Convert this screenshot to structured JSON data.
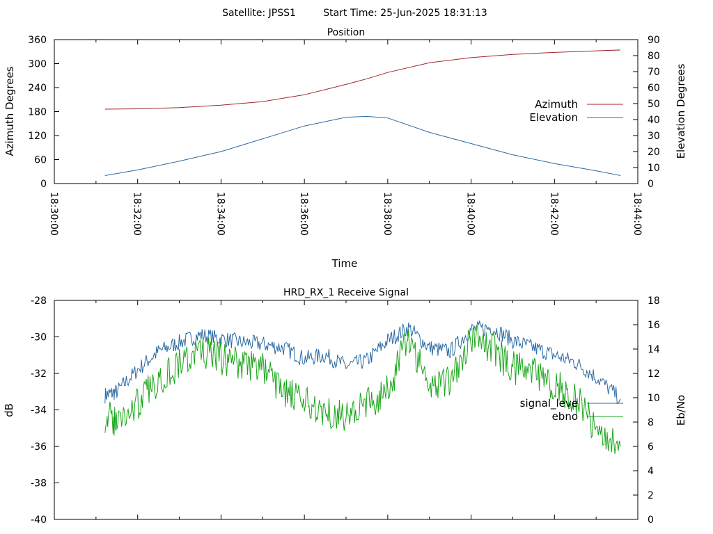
{
  "header": {
    "satellite": "Satellite: JPSS1",
    "start_time": "Start Time: 25-Jun-2025 18:31:13"
  },
  "chart_data": [
    {
      "type": "line",
      "title": "Position",
      "xlabel": "Time",
      "ylabel": "Azimuth Degrees",
      "y2label": "Elevation Degrees",
      "xlim": [
        "18:30:00",
        "18:44:00"
      ],
      "ylim": [
        0,
        360
      ],
      "y2lim": [
        0,
        90
      ],
      "x_ticks": [
        "18:30:00",
        "18:32:00",
        "18:34:00",
        "18:36:00",
        "18:38:00",
        "18:40:00",
        "18:42:00",
        "18:44:00"
      ],
      "y_ticks": [
        "0",
        "60",
        "120",
        "180",
        "240",
        "300",
        "360"
      ],
      "y2_ticks": [
        "0",
        "10",
        "20",
        "30",
        "40",
        "50",
        "60",
        "70",
        "80",
        "90"
      ],
      "legend_position": "right",
      "grid": false,
      "x": [
        "18:31:13",
        "18:32:00",
        "18:33:00",
        "18:34:00",
        "18:35:00",
        "18:36:00",
        "18:37:00",
        "18:37:30",
        "18:38:00",
        "18:39:00",
        "18:40:00",
        "18:41:00",
        "18:42:00",
        "18:43:00",
        "18:43:35"
      ],
      "series": [
        {
          "name": "Azimuth",
          "axis": "left",
          "color": "#a0262e",
          "values": [
            186,
            187,
            190,
            196,
            205,
            222,
            248,
            262,
            278,
            302,
            315,
            323,
            328,
            332,
            334
          ]
        },
        {
          "name": "Elevation",
          "axis": "right",
          "color": "#2b6aa3",
          "values": [
            5,
            8.5,
            14,
            20,
            28,
            36,
            41.5,
            42,
            41,
            32,
            25,
            18,
            12.5,
            8,
            5
          ]
        }
      ]
    },
    {
      "type": "line",
      "title": "HRD_RX_1 Receive Signal",
      "xlabel": "",
      "ylabel": "dB",
      "y2label": "Eb/No",
      "xlim": [
        "18:30:00",
        "18:44:00"
      ],
      "ylim": [
        -40,
        -28
      ],
      "y2lim": [
        0,
        18
      ],
      "y_ticks": [
        "-40",
        "-38",
        "-36",
        "-34",
        "-32",
        "-30",
        "-28"
      ],
      "y2_ticks": [
        "0",
        "2",
        "4",
        "6",
        "8",
        "10",
        "12",
        "14",
        "16",
        "18"
      ],
      "legend_position": "right",
      "grid": false,
      "x": [
        "18:31:13",
        "18:31:30",
        "18:32:00",
        "18:32:30",
        "18:33:00",
        "18:33:30",
        "18:34:00",
        "18:34:30",
        "18:35:00",
        "18:35:30",
        "18:36:00",
        "18:36:30",
        "18:37:00",
        "18:37:30",
        "18:38:00",
        "18:38:30",
        "18:39:00",
        "18:39:30",
        "18:40:00",
        "18:40:30",
        "18:41:00",
        "18:41:30",
        "18:42:00",
        "18:42:30",
        "18:43:00",
        "18:43:35"
      ],
      "series": [
        {
          "name": "signal_level",
          "label": "signal_leve",
          "axis": "left",
          "color": "#2b6aa3",
          "values": [
            -33.2,
            -33.0,
            -31.8,
            -30.8,
            -30.3,
            -29.9,
            -30.1,
            -30.3,
            -30.4,
            -30.6,
            -31.2,
            -31.0,
            -31.6,
            -31.3,
            -30.2,
            -29.5,
            -30.6,
            -30.8,
            -29.6,
            -29.5,
            -30.2,
            -30.6,
            -31.0,
            -31.4,
            -32.2,
            -33.4
          ]
        },
        {
          "name": "ebno",
          "label": "ebno",
          "axis": "right",
          "color": "#1aa51a",
          "values": [
            8.5,
            8.0,
            9.5,
            11.5,
            12.8,
            13.8,
            13.2,
            12.8,
            12.5,
            10.5,
            9.5,
            9.0,
            8.5,
            9.5,
            10.5,
            15.0,
            11.0,
            11.5,
            15.0,
            14.0,
            12.5,
            12.0,
            11.0,
            10.0,
            7.5,
            6.0
          ]
        }
      ]
    }
  ]
}
